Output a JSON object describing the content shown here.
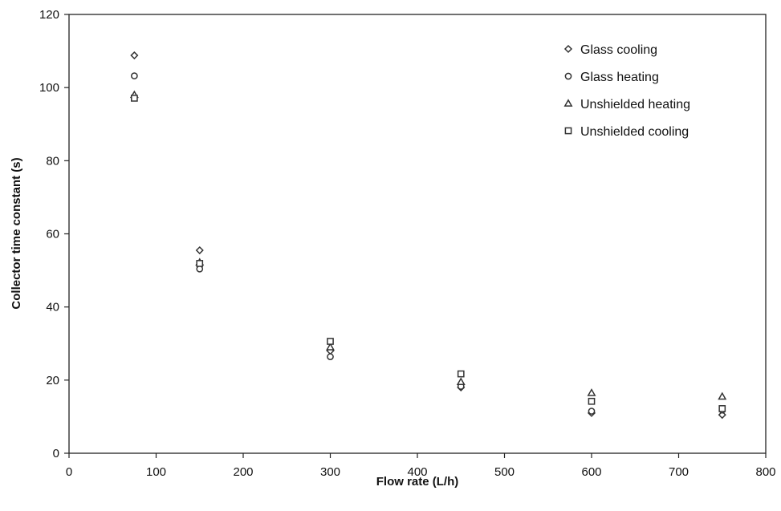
{
  "chart_data": {
    "type": "scatter",
    "title": "",
    "xlabel": "Flow rate (L/h)",
    "ylabel": "Collector time constant (s)",
    "xlim": [
      0,
      800
    ],
    "ylim": [
      0,
      120
    ],
    "x_ticks": [
      0,
      100,
      200,
      300,
      400,
      500,
      600,
      700,
      800
    ],
    "y_ticks": [
      0,
      20,
      40,
      60,
      80,
      100,
      120
    ],
    "grid": false,
    "legend_position": "top-right",
    "series": [
      {
        "name": "Glass cooling",
        "marker": "diamond",
        "x": [
          75,
          150,
          300,
          450,
          600,
          750
        ],
        "y": [
          108.8,
          55.5,
          28.0,
          18.0,
          11.0,
          10.5
        ]
      },
      {
        "name": "Glass heating",
        "marker": "circle",
        "x": [
          75,
          150,
          300,
          450,
          600,
          750
        ],
        "y": [
          103.2,
          50.4,
          26.4,
          18.3,
          11.5,
          11.8
        ]
      },
      {
        "name": "Unshielded heating",
        "marker": "triangle",
        "x": [
          75,
          150,
          300,
          450,
          600,
          750
        ],
        "y": [
          98.0,
          52.2,
          29.0,
          19.5,
          16.5,
          15.5
        ]
      },
      {
        "name": "Unshielded cooling",
        "marker": "square",
        "x": [
          75,
          150,
          300,
          450,
          600,
          750
        ],
        "y": [
          97.1,
          51.9,
          30.6,
          21.7,
          14.2,
          12.2
        ]
      }
    ]
  }
}
